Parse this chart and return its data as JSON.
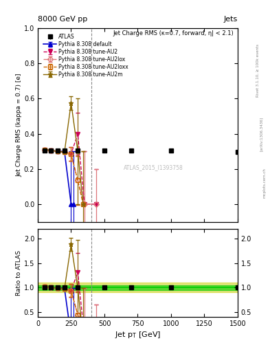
{
  "title_top": "8000 GeV pp",
  "title_right": "Jets",
  "plot_title": "Jet Charge RMS (κ=0.7, forward, η| < 2.1)",
  "ylabel_main": "Jet Charge RMS (kappa = 0.7) [e]",
  "ylabel_ratio": "Ratio to ATLAS",
  "xlabel": "Jet p_{T} [GeV]",
  "watermark": "ATLAS_2015_I1393758",
  "rivet_text": "Rivet 3.1.10, ≥ 100k events",
  "arxiv_text": "[arXiv:1306.3436]",
  "mcplots_text": "mcplots.cern.ch",
  "vline_x": 400,
  "xlim": [
    0,
    1500
  ],
  "ylim_main": [
    -0.1,
    1.0
  ],
  "ylim_ratio": [
    0.4,
    2.2
  ],
  "atlas_pt": [
    50,
    100,
    150,
    200,
    300,
    500,
    700,
    1000,
    1500
  ],
  "atlas_y": [
    0.305,
    0.305,
    0.305,
    0.305,
    0.305,
    0.305,
    0.305,
    0.305,
    0.295
  ],
  "atlas_ye": [
    0.004,
    0.003,
    0.003,
    0.003,
    0.003,
    0.003,
    0.003,
    0.003,
    0.003
  ],
  "default_pt": [
    50,
    100,
    150,
    200,
    250,
    270
  ],
  "default_y": [
    0.31,
    0.305,
    0.3,
    0.3,
    0.0,
    0.0
  ],
  "default_ye": [
    0.004,
    0.003,
    0.003,
    0.003,
    0.3,
    0.3
  ],
  "au2_pt": [
    50,
    100,
    150,
    200,
    250,
    300,
    350,
    440
  ],
  "au2_y": [
    0.31,
    0.305,
    0.3,
    0.295,
    0.285,
    0.4,
    0.0,
    0.0
  ],
  "au2_ye": [
    0.004,
    0.003,
    0.003,
    0.003,
    0.04,
    0.12,
    0.3,
    0.2
  ],
  "au2lox_pt": [
    50,
    100,
    150,
    200,
    250,
    300,
    350,
    440
  ],
  "au2lox_y": [
    0.31,
    0.305,
    0.3,
    0.295,
    0.285,
    0.135,
    0.0,
    0.0
  ],
  "au2lox_ye": [
    0.004,
    0.003,
    0.003,
    0.003,
    0.04,
    0.14,
    0.3,
    0.2
  ],
  "au2loxx_pt": [
    50,
    100,
    150,
    200,
    250,
    300,
    340
  ],
  "au2loxx_y": [
    0.31,
    0.305,
    0.3,
    0.295,
    0.285,
    0.135,
    0.0
  ],
  "au2loxx_ye": [
    0.004,
    0.003,
    0.003,
    0.003,
    0.04,
    0.14,
    0.3
  ],
  "au2m_pt": [
    50,
    100,
    150,
    200,
    250,
    300,
    340
  ],
  "au2m_y": [
    0.31,
    0.305,
    0.3,
    0.295,
    0.575,
    0.3,
    0.0
  ],
  "au2m_ye": [
    0.004,
    0.003,
    0.003,
    0.003,
    0.04,
    0.3,
    0.3
  ],
  "color_default": "#0000cc",
  "color_au2": "#cc0055",
  "color_au2lox": "#dd7777",
  "color_au2loxx": "#cc6600",
  "color_au2m": "#886600",
  "color_atlas": "#000000",
  "band_green": "#00cc00",
  "band_yellow": "#cccc00"
}
